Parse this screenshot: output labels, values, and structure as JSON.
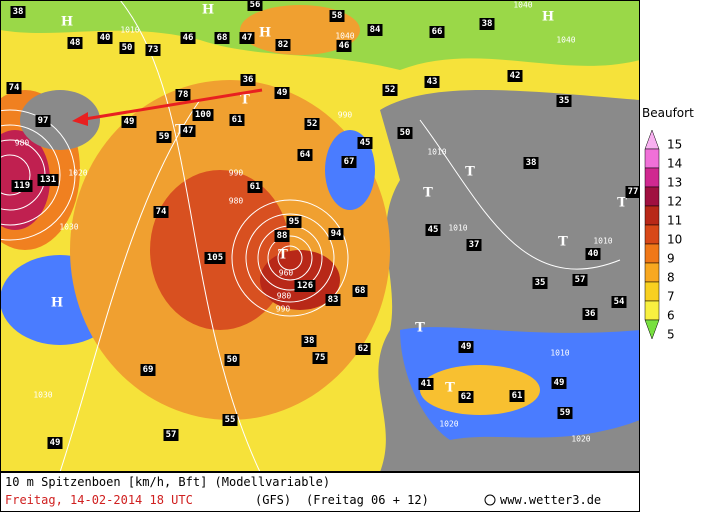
{
  "map": {
    "pressure_systems": [
      "H",
      "H",
      "H",
      "H",
      "H",
      "T",
      "T",
      "T",
      "T",
      "T",
      "T",
      "T",
      "T",
      "T"
    ],
    "gust_labels": [
      "38",
      "56",
      "58",
      "40",
      "50",
      "73",
      "48",
      "46",
      "68",
      "47",
      "82",
      "46",
      "84",
      "66",
      "38",
      "74",
      "36",
      "49",
      "43",
      "42",
      "52",
      "35",
      "97",
      "49",
      "78",
      "100",
      "61",
      "52",
      "59",
      "47",
      "50",
      "45",
      "64",
      "67",
      "38",
      "119",
      "131",
      "61",
      "74",
      "77",
      "95",
      "88",
      "94",
      "45",
      "37",
      "40",
      "105",
      "57",
      "35",
      "54",
      "126",
      "83",
      "68",
      "36",
      "38",
      "62",
      "49",
      "75",
      "50",
      "69",
      "41",
      "49",
      "62",
      "61",
      "59",
      "57",
      "55",
      "49"
    ],
    "isobar_labels": [
      "990",
      "1010",
      "990",
      "980",
      "980",
      "1020",
      "1030",
      "960",
      "980",
      "990",
      "1010",
      "1010",
      "1010",
      "1020",
      "1020",
      "1030",
      "1040",
      "1040",
      "1040",
      "1010"
    ]
  },
  "legend": {
    "title": "Beaufort",
    "levels": [
      {
        "label": "15",
        "color": "#f8b0f0"
      },
      {
        "label": "14",
        "color": "#f070d8"
      },
      {
        "label": "13",
        "color": "#d02890"
      },
      {
        "label": "12",
        "color": "#a01040"
      },
      {
        "label": "11",
        "color": "#b82818"
      },
      {
        "label": "10",
        "color": "#d84818"
      },
      {
        "label": "9",
        "color": "#f07818"
      },
      {
        "label": "8",
        "color": "#f8a820"
      },
      {
        "label": "7",
        "color": "#f8d020"
      },
      {
        "label": "6",
        "color": "#f8f040"
      },
      {
        "label": "5",
        "color": "#78e040"
      }
    ]
  },
  "footer": {
    "line1": "10 m Spitzenboen [km/h, Bft] (Modellvariable)",
    "date": "Freitag, 14-02-2014  18 UTC",
    "model": "(GFS)",
    "run": "(Freitag 06 + 12)",
    "source": "www.wetter3.de"
  }
}
